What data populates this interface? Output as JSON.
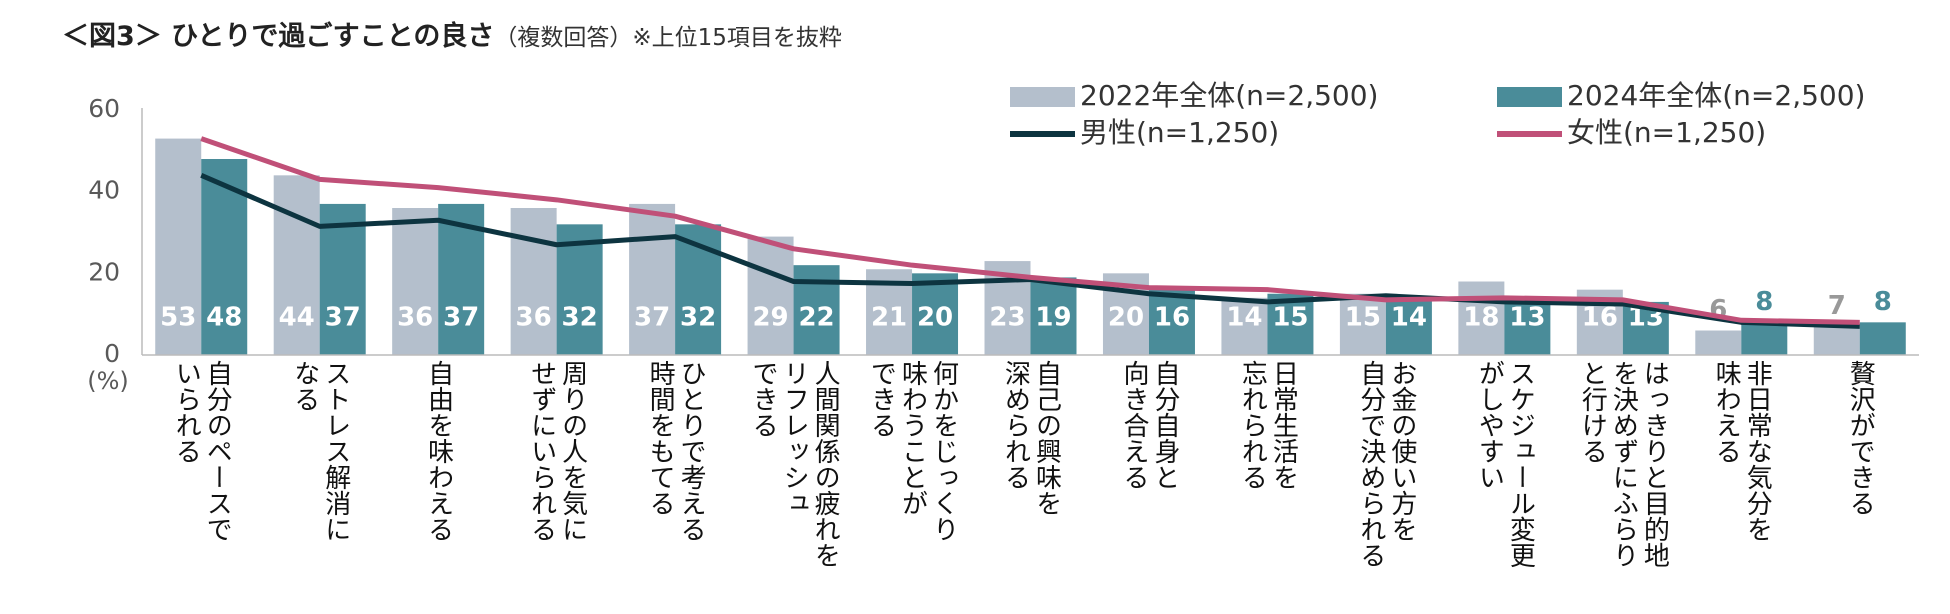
{
  "chart_data": {
    "type": "bar",
    "title": "＜図3＞ ひとりで過ごすことの良さ",
    "subtitle": "（複数回答）※上位15項目を抜粋",
    "y_unit": "(%)",
    "categories": [
      "自分のペースで\nいられる",
      "ストレス解消に\nなる",
      "自由を味わえる",
      "周りの人を気に\nせずにいられる",
      "ひとりで考える\n時間をもてる",
      "人間関係の疲れを\nリフレッシュ\nできる",
      "何かをじっくり\n味わうことが\nできる",
      "自己の興味を\n深められる",
      "自分自身と\n向き合える",
      "日常生活を\n忘れられる",
      "お金の使い方を\n自分で決められる",
      "スケジュール変更\nがしやすい",
      "はっきりと目的地\nを決めずにふらり\nと行ける",
      "非日常な気分を\n味わえる",
      "贅沢ができる"
    ],
    "series": [
      {
        "name": "2022年全体(n=2,500)",
        "kind": "bar",
        "color": "#b4bfcc",
        "values": [
          53,
          44,
          36,
          36,
          37,
          29,
          21,
          23,
          20,
          14,
          15,
          18,
          16,
          6,
          7
        ]
      },
      {
        "name": "2024年全体(n=2,500)",
        "kind": "bar",
        "color": "#4a8c99",
        "values": [
          48,
          37,
          37,
          32,
          32,
          22,
          20,
          19,
          16,
          15,
          14,
          13,
          13,
          8,
          8
        ]
      },
      {
        "name": "男性(n=1,250)",
        "kind": "line",
        "color": "#0d3440",
        "values": [
          44,
          31.5,
          33,
          27,
          29,
          18,
          17.5,
          18.5,
          15,
          13,
          14.5,
          13,
          12.5,
          8,
          7
        ]
      },
      {
        "name": "女性(n=1,250)",
        "kind": "line",
        "color": "#c05078",
        "values": [
          53,
          43,
          41,
          38,
          34,
          26,
          22,
          19,
          16.5,
          16,
          13.5,
          14,
          13.5,
          8.5,
          8
        ]
      }
    ],
    "ylim": [
      0,
      60
    ],
    "yticks": [
      0,
      20,
      40,
      60
    ],
    "grid": false
  }
}
